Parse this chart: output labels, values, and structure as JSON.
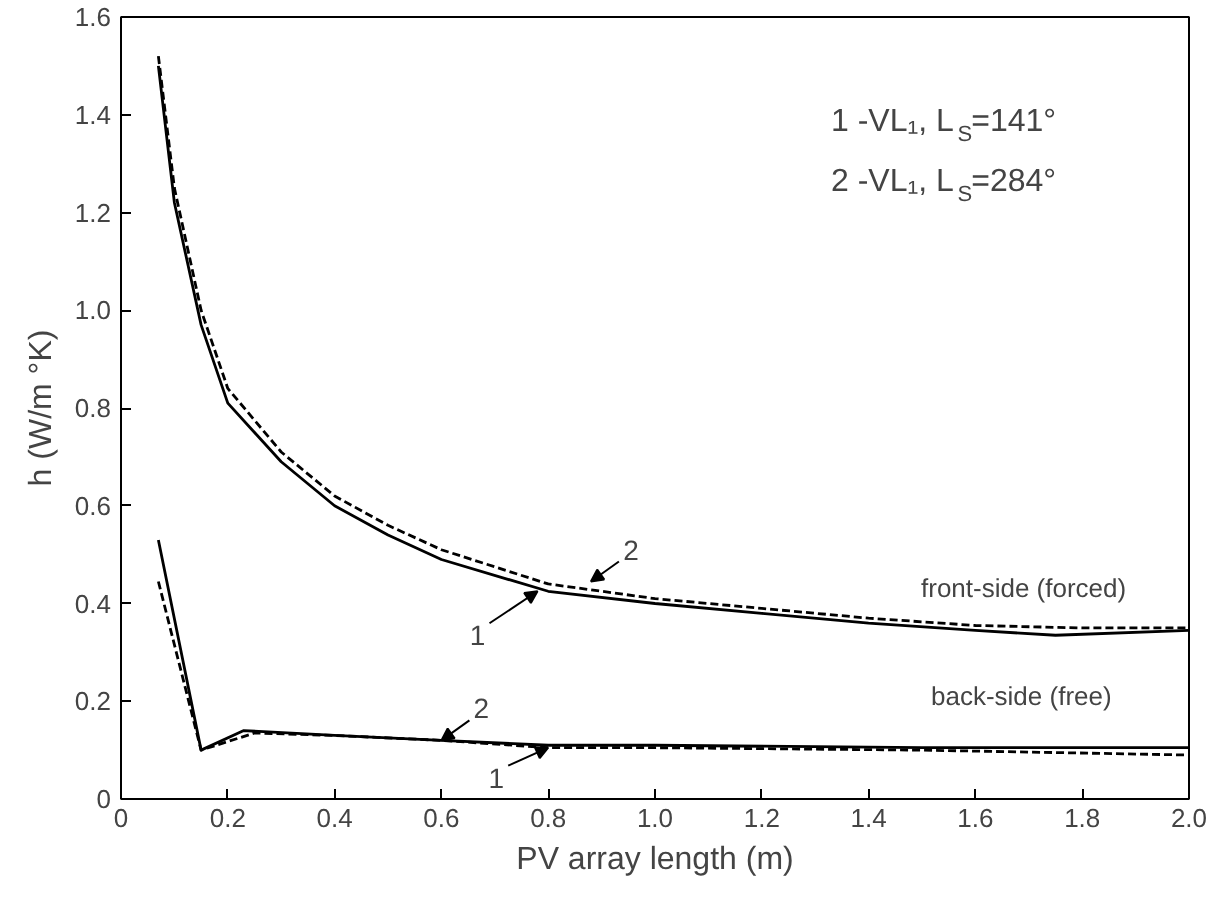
{
  "chart_data": {
    "type": "line",
    "xlabel": "PV array length (m)",
    "ylabel": "h (W/m °K)",
    "xlim": [
      0,
      2.0
    ],
    "ylim": [
      0,
      1.6
    ],
    "xticks": [
      0,
      0.2,
      0.4,
      0.6,
      0.8,
      {
        "value": 1.0,
        "label": "1.0"
      },
      1.2,
      1.4,
      1.6,
      1.8,
      {
        "value": 2.0,
        "label": "2.0"
      }
    ],
    "yticks": [
      0,
      0.2,
      0.4,
      0.6,
      0.8,
      {
        "value": 1.0,
        "label": "1.0"
      },
      1.2,
      1.4,
      1.6
    ],
    "grid": false,
    "series": [
      {
        "color": "#000000",
        "line_style": "solid",
        "x": [
          0.07,
          0.1,
          0.15,
          0.2,
          0.3,
          0.4,
          0.5,
          0.6,
          0.8,
          1.0,
          1.2,
          1.4,
          1.6,
          1.75,
          2.0
        ],
        "values": [
          1.5,
          1.22,
          0.97,
          0.81,
          0.69,
          0.6,
          0.54,
          0.49,
          0.425,
          0.4,
          0.38,
          0.36,
          0.345,
          0.335,
          0.345
        ]
      },
      {
        "color": "#000000",
        "line_style": "dashed",
        "x": [
          0.07,
          0.1,
          0.15,
          0.2,
          0.3,
          0.4,
          0.5,
          0.6,
          0.8,
          1.0,
          1.2,
          1.4,
          1.6,
          1.8,
          2.0
        ],
        "values": [
          1.52,
          1.25,
          1.0,
          0.84,
          0.71,
          0.62,
          0.56,
          0.51,
          0.44,
          0.41,
          0.39,
          0.37,
          0.355,
          0.35,
          0.35
        ]
      },
      {
        "color": "#000000",
        "line_style": "solid",
        "x": [
          0.07,
          0.15,
          0.23,
          0.4,
          0.6,
          0.8,
          1.0,
          1.5,
          2.0
        ],
        "values": [
          0.53,
          0.1,
          0.14,
          0.13,
          0.12,
          0.11,
          0.11,
          0.105,
          0.105
        ]
      },
      {
        "color": "#000000",
        "line_style": "dashed",
        "x": [
          0.07,
          0.15,
          0.25,
          0.4,
          0.6,
          0.8,
          1.0,
          1.5,
          2.0
        ],
        "values": [
          0.445,
          0.1,
          0.135,
          0.13,
          0.12,
          0.105,
          0.105,
          0.1,
          0.09
        ]
      }
    ],
    "annotations": [
      "1 -VL₁,  L$_{S}$=141°",
      "2 -VL₁,  L$_{S}$=284°",
      "front-side (forced)",
      "back-side (free)",
      {
        "text": "1",
        "x": 0.78,
        "y": 0.425
      },
      {
        "text": "2",
        "x": 0.88,
        "y": 0.445
      },
      {
        "text": "2",
        "x": 0.6,
        "y": 0.12
      },
      {
        "text": "1",
        "x": 0.8,
        "y": 0.105
      }
    ]
  }
}
